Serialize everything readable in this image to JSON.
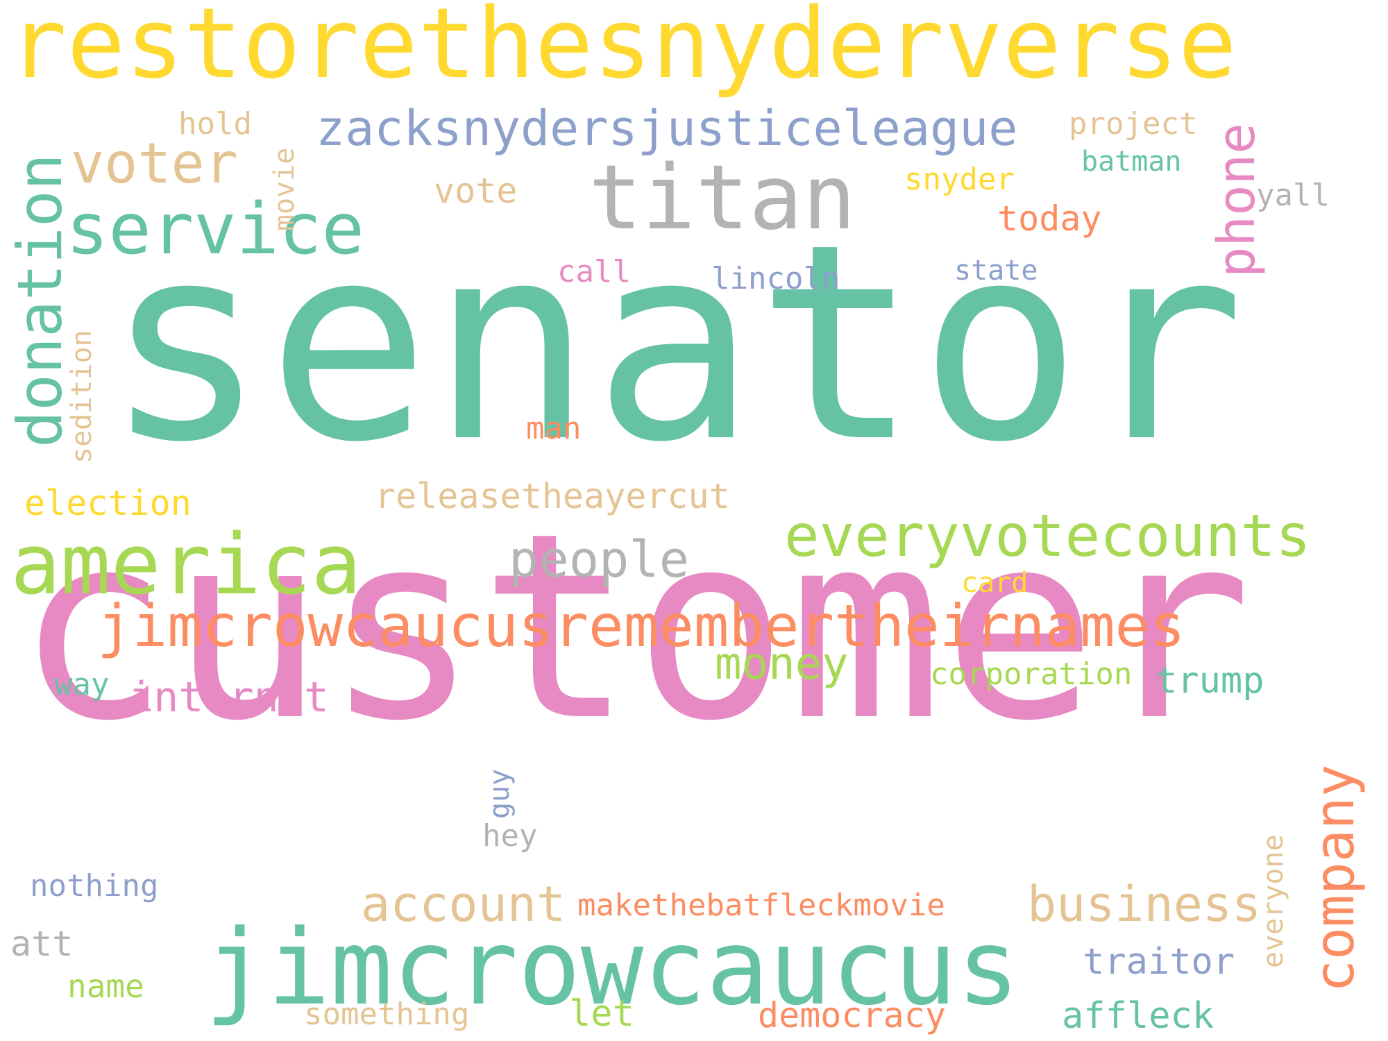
{
  "palette": {
    "teal": "#66c2a5",
    "orange": "#fc8d62",
    "blue": "#8da0cb",
    "pink": "#e78ac3",
    "green": "#a6d854",
    "yellow": "#ffd92f",
    "tan": "#e5c494",
    "gray": "#b3b3b3"
  },
  "words": [
    {
      "text": "restorethesnyderverse",
      "color": "yellow",
      "orientation": "horizontal"
    },
    {
      "text": "senator",
      "color": "teal",
      "orientation": "horizontal"
    },
    {
      "text": "customer",
      "color": "pink",
      "orientation": "horizontal"
    },
    {
      "text": "titan",
      "color": "gray",
      "orientation": "horizontal"
    },
    {
      "text": "service",
      "color": "teal",
      "orientation": "horizontal"
    },
    {
      "text": "zacksnydersjusticeleague",
      "color": "blue",
      "orientation": "horizontal"
    },
    {
      "text": "voter",
      "color": "tan",
      "orientation": "horizontal"
    },
    {
      "text": "hold",
      "color": "tan",
      "orientation": "horizontal"
    },
    {
      "text": "movie",
      "color": "tan",
      "orientation": "vertical"
    },
    {
      "text": "vote",
      "color": "tan",
      "orientation": "horizontal"
    },
    {
      "text": "project",
      "color": "tan",
      "orientation": "horizontal"
    },
    {
      "text": "batman",
      "color": "teal",
      "orientation": "horizontal"
    },
    {
      "text": "snyder",
      "color": "yellow",
      "orientation": "horizontal"
    },
    {
      "text": "yall",
      "color": "gray",
      "orientation": "horizontal"
    },
    {
      "text": "phone",
      "color": "pink",
      "orientation": "vertical"
    },
    {
      "text": "today",
      "color": "orange",
      "orientation": "horizontal"
    },
    {
      "text": "call",
      "color": "pink",
      "orientation": "horizontal"
    },
    {
      "text": "state",
      "color": "blue",
      "orientation": "horizontal"
    },
    {
      "text": "lincoln",
      "color": "blue",
      "orientation": "horizontal"
    },
    {
      "text": "donation",
      "color": "teal",
      "orientation": "vertical"
    },
    {
      "text": "sedition",
      "color": "tan",
      "orientation": "vertical"
    },
    {
      "text": "man",
      "color": "orange",
      "orientation": "horizontal"
    },
    {
      "text": "election",
      "color": "yellow",
      "orientation": "horizontal"
    },
    {
      "text": "releasetheayercut",
      "color": "tan",
      "orientation": "horizontal"
    },
    {
      "text": "america",
      "color": "green",
      "orientation": "horizontal"
    },
    {
      "text": "people",
      "color": "gray",
      "orientation": "horizontal"
    },
    {
      "text": "everyvotecounts",
      "color": "green",
      "orientation": "horizontal"
    },
    {
      "text": "card",
      "color": "yellow",
      "orientation": "horizontal"
    },
    {
      "text": "jimcrowcaucusremembertheirnames",
      "color": "orange",
      "orientation": "horizontal"
    },
    {
      "text": "money",
      "color": "green",
      "orientation": "horizontal"
    },
    {
      "text": "corporation",
      "color": "green",
      "orientation": "horizontal"
    },
    {
      "text": "trump",
      "color": "teal",
      "orientation": "horizontal"
    },
    {
      "text": "way",
      "color": "teal",
      "orientation": "horizontal"
    },
    {
      "text": "internet",
      "color": "pink",
      "orientation": "horizontal"
    },
    {
      "text": "company",
      "color": "orange",
      "orientation": "vertical"
    },
    {
      "text": "guy",
      "color": "blue",
      "orientation": "vertical"
    },
    {
      "text": "hey",
      "color": "gray",
      "orientation": "horizontal"
    },
    {
      "text": "everyone",
      "color": "tan",
      "orientation": "vertical"
    },
    {
      "text": "nothing",
      "color": "blue",
      "orientation": "horizontal"
    },
    {
      "text": "account",
      "color": "tan",
      "orientation": "horizontal"
    },
    {
      "text": "makethebatfleckmovie",
      "color": "orange",
      "orientation": "horizontal"
    },
    {
      "text": "business",
      "color": "tan",
      "orientation": "horizontal"
    },
    {
      "text": "att",
      "color": "gray",
      "orientation": "horizontal"
    },
    {
      "text": "jimcrowcaucus",
      "color": "teal",
      "orientation": "horizontal"
    },
    {
      "text": "traitor",
      "color": "blue",
      "orientation": "horizontal"
    },
    {
      "text": "name",
      "color": "green",
      "orientation": "horizontal"
    },
    {
      "text": "something",
      "color": "tan",
      "orientation": "horizontal"
    },
    {
      "text": "let",
      "color": "green",
      "orientation": "horizontal"
    },
    {
      "text": "democracy",
      "color": "orange",
      "orientation": "horizontal"
    },
    {
      "text": "affleck",
      "color": "teal",
      "orientation": "horizontal"
    }
  ]
}
